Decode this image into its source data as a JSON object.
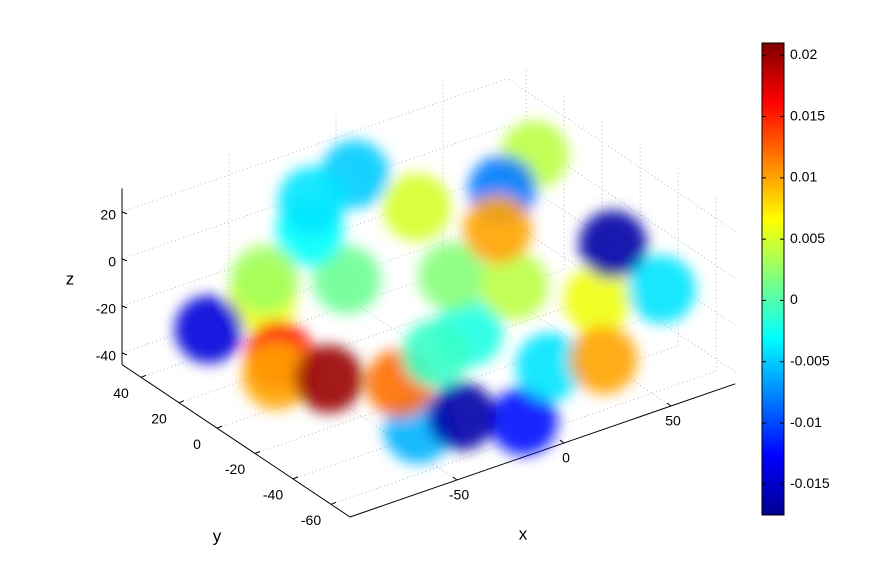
{
  "chart_data": {
    "type": "scatter3d",
    "xlabel": "x",
    "ylabel": "y",
    "zlabel": "z",
    "xlim": [
      -100,
      80
    ],
    "ylim": [
      -70,
      50
    ],
    "zlim": [
      -45,
      30
    ],
    "xticks": [
      -50,
      0,
      50
    ],
    "yticks": [
      -60,
      -40,
      -20,
      0,
      20,
      40
    ],
    "zticks": [
      -40,
      -20,
      0,
      20
    ],
    "grid": true,
    "colormap": "jet",
    "clim": [
      -0.0175,
      0.021
    ],
    "cticks": [
      -0.015,
      -0.01,
      -0.005,
      0,
      0.005,
      0.01,
      0.015,
      0.02
    ],
    "x": [
      0,
      -35,
      -70,
      75,
      -30,
      0,
      10,
      -60,
      20,
      30,
      -20,
      60,
      -55,
      -10,
      90,
      20,
      60,
      -50,
      -80,
      -90,
      -95,
      -30,
      -20,
      40,
      45,
      85,
      -70
    ],
    "y": [
      -20,
      5,
      10,
      30,
      30,
      40,
      0,
      20,
      30,
      -10,
      40,
      -20,
      -55,
      -60,
      -20,
      -40,
      30,
      -40,
      -10,
      -20,
      10,
      -50,
      -25,
      10,
      -40,
      0,
      -25
    ],
    "z": [
      -25,
      -5,
      -5,
      0,
      0,
      10,
      -15,
      -5,
      -5,
      -20,
      5,
      -30,
      -30,
      -38,
      -35,
      -35,
      -10,
      -20,
      -15,
      -15,
      -10,
      -35,
      -25,
      -10,
      -40,
      -25,
      -20
    ],
    "c": [
      -0.002,
      0.001,
      0.006,
      0.004,
      -0.003,
      -0.005,
      0.002,
      0.003,
      0.005,
      0.004,
      -0.004,
      0.006,
      -0.006,
      -0.012,
      -0.004,
      -0.004,
      -0.008,
      0.012,
      0.016,
      0.01,
      -0.014,
      -0.016,
      -0.001,
      0.01,
      0.01,
      -0.016,
      0.02
    ]
  }
}
